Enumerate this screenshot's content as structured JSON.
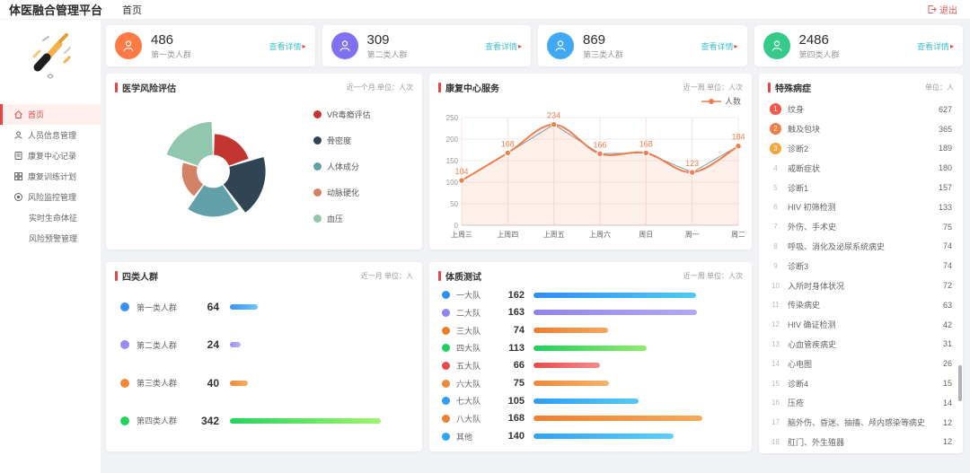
{
  "header": {
    "app_title": "体医融合管理平台",
    "breadcrumb": "首页",
    "logout_label": "退出"
  },
  "sidebar": {
    "menu": [
      {
        "label": "首页",
        "icon": "home",
        "active": true,
        "sub": false
      },
      {
        "label": "人员信息管理",
        "icon": "user",
        "active": false,
        "sub": false
      },
      {
        "label": "康复中心记录",
        "icon": "doc",
        "active": false,
        "sub": false
      },
      {
        "label": "康复训练计划",
        "icon": "plan",
        "active": false,
        "sub": false
      },
      {
        "label": "风险监控管理",
        "icon": "target",
        "active": false,
        "sub": false
      },
      {
        "label": "实时生命体征",
        "icon": "",
        "active": false,
        "sub": true
      },
      {
        "label": "风险预警管理",
        "icon": "",
        "active": false,
        "sub": true
      }
    ]
  },
  "stats": {
    "detail_label": "查看详情",
    "cards": [
      {
        "value": "486",
        "label": "第一类人群",
        "color": "#ff7a45"
      },
      {
        "value": "309",
        "label": "第二类人群",
        "color": "#8070f2"
      },
      {
        "value": "869",
        "label": "第三类人群",
        "color": "#41a8f5"
      },
      {
        "value": "2486",
        "label": "第四类人群",
        "color": "#35ca8a"
      }
    ]
  },
  "panels": {
    "risk": {
      "title": "医学风险评估",
      "meta": "近一个月 单位：人次"
    },
    "service": {
      "title": "康复中心服务",
      "meta": "近一周 单位：人次"
    },
    "special": {
      "title": "特殊病症",
      "meta": "单位：人"
    },
    "groups": {
      "title": "四类人群",
      "meta": "近一月 单位：人"
    },
    "fitness": {
      "title": "体质测试",
      "meta": "近一周 单位：人次"
    }
  },
  "chart_data": [
    {
      "id": "medical_risk_rose",
      "type": "pie",
      "subtype": "nightingale-rose",
      "title": "医学风险评估",
      "unit": "人次",
      "legend_position": "right",
      "series": [
        {
          "name": "VR毒瘾评估",
          "value": 43,
          "color": "#c23531"
        },
        {
          "name": "骨密度",
          "value": 60,
          "color": "#2f4554"
        },
        {
          "name": "人体成分",
          "value": 52,
          "color": "#61a0a8"
        },
        {
          "name": "动脉硬化",
          "value": 36,
          "color": "#d48265"
        },
        {
          "name": "血压",
          "value": 57,
          "color": "#91c7ae"
        }
      ]
    },
    {
      "id": "rehab_service_line",
      "type": "line",
      "title": "康复中心服务",
      "unit": "人次",
      "categories": [
        "上周三",
        "上周四",
        "上周五",
        "上周六",
        "周日",
        "周一",
        "周二"
      ],
      "series": [
        {
          "name": "人数",
          "values": [
            104,
            168,
            234,
            166,
            168,
            123,
            184
          ],
          "color": "#ee7f50"
        }
      ],
      "ylim": [
        0,
        250
      ],
      "yticks": [
        0,
        50,
        100,
        150,
        200,
        250
      ],
      "grid": true,
      "legend_position": "top-right"
    },
    {
      "id": "four_groups_bar",
      "type": "bar",
      "title": "四类人群",
      "unit": "人",
      "categories": [
        "第一类人群",
        "第二类人群",
        "第三类人群",
        "第四类人群"
      ],
      "values": [
        64,
        24,
        40,
        342
      ],
      "colors": [
        [
          "#3e8ef7",
          "#6cc7fd"
        ],
        [
          "#9a8cf5",
          "#beb4fb"
        ],
        [
          "#ef8a3a",
          "#f6b05e"
        ],
        [
          "#24d35c",
          "#a0f56d"
        ]
      ]
    },
    {
      "id": "fitness_test_bar",
      "type": "bar",
      "title": "体质测试",
      "unit": "人次",
      "categories": [
        "一大队",
        "二大队",
        "三大队",
        "四大队",
        "五大队",
        "六大队",
        "七大队",
        "八大队",
        "其他"
      ],
      "values": [
        162,
        163,
        74,
        113,
        66,
        75,
        105,
        168,
        140
      ],
      "colors": [
        [
          "#2f8ef5",
          "#4fc9f8"
        ],
        [
          "#8f82f3",
          "#b3a9f9"
        ],
        [
          "#ef7c2e",
          "#f7a85c"
        ],
        [
          "#1ed05e",
          "#8fee6a"
        ],
        [
          "#e84b4b",
          "#f58b8b"
        ],
        [
          "#f0883a",
          "#f7b269"
        ],
        [
          "#2e9df5",
          "#55c8fa"
        ],
        [
          "#ef8030",
          "#f8a95a"
        ],
        [
          "#2fa3f7",
          "#5bd0fa"
        ]
      ]
    },
    {
      "id": "special_disease_rank",
      "type": "table",
      "title": "特殊病症",
      "unit": "人",
      "badge_colors": [
        "#f5564a",
        "#f57b46",
        "#f5a63b"
      ],
      "items": [
        {
          "rank": 1,
          "label": "纹身",
          "value": 627
        },
        {
          "rank": 2,
          "label": "触及包块",
          "value": 365
        },
        {
          "rank": 3,
          "label": "诊断2",
          "value": 189
        },
        {
          "rank": 4,
          "label": "戒断症状",
          "value": 180
        },
        {
          "rank": 5,
          "label": "诊断1",
          "value": 157
        },
        {
          "rank": 6,
          "label": "HIV 初筛检测",
          "value": 133
        },
        {
          "rank": 7,
          "label": "外伤、手术史",
          "value": 75
        },
        {
          "rank": 8,
          "label": "呼吸、消化及泌尿系统病史",
          "value": 74
        },
        {
          "rank": 9,
          "label": "诊断3",
          "value": 74
        },
        {
          "rank": 10,
          "label": "入所时身体状况",
          "value": 72
        },
        {
          "rank": 11,
          "label": "传染病史",
          "value": 63
        },
        {
          "rank": 12,
          "label": "HIV 确证检测",
          "value": 42
        },
        {
          "rank": 13,
          "label": "心血管疾病史",
          "value": 31
        },
        {
          "rank": 14,
          "label": "心电图",
          "value": 26
        },
        {
          "rank": 15,
          "label": "诊断4",
          "value": 15
        },
        {
          "rank": 16,
          "label": "压疮",
          "value": 14
        },
        {
          "rank": 17,
          "label": "脑外伤、昏迷、抽搐、颅内感染等病史",
          "value": 12
        },
        {
          "rank": 18,
          "label": "肛门、外生殖器",
          "value": 12
        }
      ]
    }
  ]
}
